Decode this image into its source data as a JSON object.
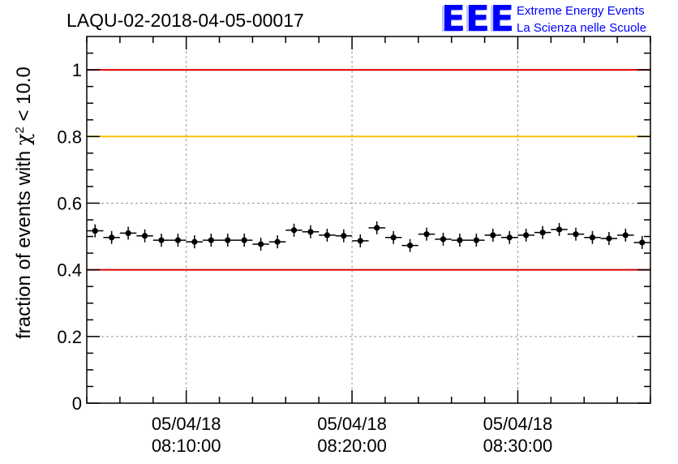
{
  "chart_data": {
    "type": "scatter",
    "title": "LAQU-02-2018-04-05-00017",
    "ylabel_main": "fraction of events with ",
    "ylabel_chi": "χ",
    "ylabel_sup": "2",
    "ylabel_tail": " < 10.0",
    "ylim": [
      0,
      1.1
    ],
    "yticks": [
      "0",
      "0.2",
      "0.4",
      "0.6",
      "0.8",
      "1"
    ],
    "ytick_values": [
      0,
      0.2,
      0.4,
      0.6,
      0.8,
      1.0
    ],
    "xlim_minutes": [
      4.0,
      21.0
    ],
    "xticks": [
      {
        "date": "05/04/18",
        "time": "08:10:00",
        "minute": 7
      },
      {
        "date": "05/04/18",
        "time": "08:20:00",
        "minute": 12
      },
      {
        "date": "05/04/18",
        "time": "08:30:00",
        "minute": 17
      }
    ],
    "grid": true,
    "reference_lines": [
      {
        "value": 1.0,
        "color": "#e00000"
      },
      {
        "value": 0.8,
        "color": "#ffc000"
      },
      {
        "value": 0.4,
        "color": "#e00000"
      }
    ],
    "point_color": "#000000",
    "x": [
      4.25,
      4.75,
      5.25,
      5.75,
      6.25,
      6.75,
      7.25,
      7.75,
      8.25,
      8.75,
      9.25,
      9.75,
      10.25,
      10.75,
      11.25,
      11.75,
      12.25,
      12.75,
      13.25,
      13.75,
      14.25,
      14.75,
      15.25,
      15.75,
      16.25,
      16.75,
      17.25,
      17.75,
      18.25,
      18.75,
      19.25,
      19.75,
      20.25,
      20.75
    ],
    "values": [
      0.517,
      0.497,
      0.51,
      0.502,
      0.489,
      0.489,
      0.484,
      0.489,
      0.489,
      0.489,
      0.477,
      0.484,
      0.519,
      0.514,
      0.504,
      0.502,
      0.487,
      0.526,
      0.497,
      0.473,
      0.507,
      0.492,
      0.489,
      0.489,
      0.504,
      0.497,
      0.504,
      0.512,
      0.521,
      0.507,
      0.497,
      0.494,
      0.504,
      0.482
    ]
  },
  "logo": {
    "text": "EEE",
    "line1": "Extreme Energy Events",
    "line2": "La Scienza nelle Scuole",
    "color": "#0000ff"
  }
}
